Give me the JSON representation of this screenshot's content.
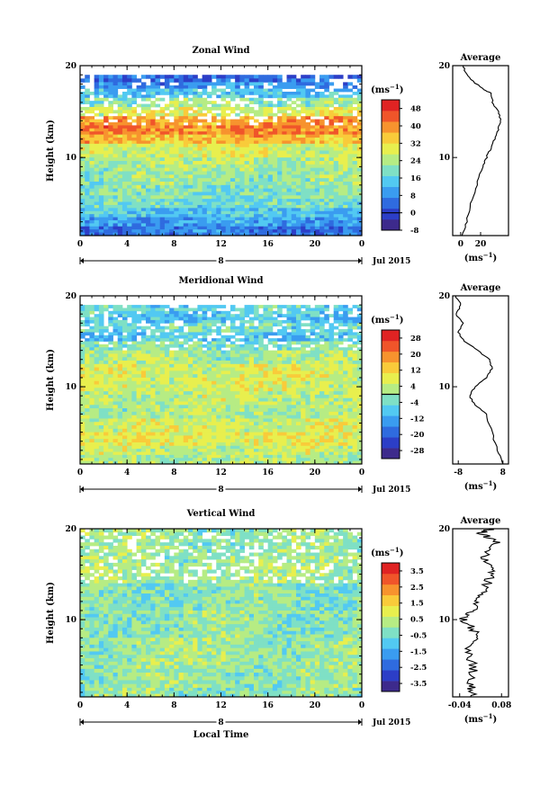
{
  "chart_data": [
    {
      "type": "heatmap",
      "title": "Zonal Wind",
      "ylabel": "Height (km)",
      "x_ticks": [
        "0",
        "4",
        "8",
        "12",
        "16",
        "20",
        "0"
      ],
      "y_ticks": [
        "10",
        "20"
      ],
      "xlim": [
        0,
        24
      ],
      "ylim": [
        1.5,
        20
      ],
      "date_marker": "8",
      "date_label": "Jul 2015",
      "colorbar": {
        "unit": "(ms",
        "unit_sup": "−1",
        "unit_close": ")",
        "labels": [
          "48",
          "40",
          "32",
          "24",
          "16",
          "8",
          "0",
          "-8"
        ],
        "range": [
          -8,
          52
        ],
        "zero_line": 0,
        "colors": [
          "#3d2a8c",
          "#2c3ec7",
          "#2f6bdf",
          "#3a9cf0",
          "#52c9f2",
          "#7fe0c5",
          "#b6ec84",
          "#e8ef4e",
          "#f9cb3a",
          "#f7932e",
          "#f0552a",
          "#e02323"
        ]
      },
      "rows": [
        {
          "y_max": 20.0,
          "base": null
        },
        {
          "y_max": 19.0,
          "base": 4
        },
        {
          "y_max": 18.2,
          "base": 8
        },
        {
          "y_max": 17.5,
          "base": 14
        },
        {
          "y_max": 16.5,
          "base": 22
        },
        {
          "y_max": 15.5,
          "base": 28
        },
        {
          "y_max": 14.5,
          "base": 38
        },
        {
          "y_max": 13.5,
          "base": 40
        },
        {
          "y_max": 12.5,
          "base": 36
        },
        {
          "y_max": 11.5,
          "base": 28
        },
        {
          "y_max": 10.0,
          "base": 24
        },
        {
          "y_max": 8.5,
          "base": 22
        },
        {
          "y_max": 7.0,
          "base": 20
        },
        {
          "y_max": 5.5,
          "base": 18
        },
        {
          "y_max": 4.5,
          "base": 14
        },
        {
          "y_max": 3.5,
          "base": 10
        },
        {
          "y_max": 2.5,
          "base": 6
        }
      ],
      "average": {
        "title": "Average",
        "x_ticks": [
          "0",
          "20"
        ],
        "xlim": [
          -8,
          48
        ],
        "xlabel": "(ms",
        "xlabel_sup": "−1",
        "xlabel_close": ")",
        "profile": [
          [
            2,
            1.5
          ],
          [
            6,
            3
          ],
          [
            10,
            5
          ],
          [
            16,
            7
          ],
          [
            22,
            9
          ],
          [
            26,
            10
          ],
          [
            30,
            11
          ],
          [
            34,
            12
          ],
          [
            38,
            13
          ],
          [
            40,
            14
          ],
          [
            38,
            15
          ],
          [
            32,
            16
          ],
          [
            30,
            17
          ],
          [
            22,
            17.5
          ],
          [
            10,
            18.5
          ],
          [
            4,
            19.5
          ],
          [
            2,
            20
          ]
        ]
      }
    },
    {
      "type": "heatmap",
      "title": "Meridional Wind",
      "ylabel": "Height (km)",
      "x_ticks": [
        "0",
        "4",
        "8",
        "12",
        "16",
        "20",
        "0"
      ],
      "y_ticks": [
        "10",
        "20"
      ],
      "xlim": [
        0,
        24
      ],
      "ylim": [
        1.5,
        20
      ],
      "date_marker": "8",
      "date_label": "Jul 2015",
      "colorbar": {
        "unit": "(ms",
        "unit_sup": "−1",
        "unit_close": ")",
        "labels": [
          "28",
          "20",
          "12",
          "4",
          "-4",
          "-12",
          "-20",
          "-28"
        ],
        "range": [
          -32,
          32
        ],
        "zero_line": 0,
        "colors": [
          "#3d2a8c",
          "#2c3ec7",
          "#2f6bdf",
          "#3a9cf0",
          "#52c9f2",
          "#7fe0c5",
          "#b6ec84",
          "#e8ef4e",
          "#f9cb3a",
          "#f7932e",
          "#f0552a",
          "#e02323"
        ]
      },
      "rows": [
        {
          "y_max": 20.0,
          "base": null
        },
        {
          "y_max": 19.0,
          "base": -6
        },
        {
          "y_max": 18.0,
          "base": -8
        },
        {
          "y_max": 17.0,
          "base": -4
        },
        {
          "y_max": 16.0,
          "base": -8
        },
        {
          "y_max": 15.0,
          "base": -2
        },
        {
          "y_max": 14.0,
          "base": 2
        },
        {
          "y_max": 12.5,
          "base": 6
        },
        {
          "y_max": 11.0,
          "base": 6
        },
        {
          "y_max": 9.5,
          "base": 4
        },
        {
          "y_max": 8.0,
          "base": 2
        },
        {
          "y_max": 6.5,
          "base": 6
        },
        {
          "y_max": 5.0,
          "base": 8
        },
        {
          "y_max": 3.5,
          "base": 4
        },
        {
          "y_max": 2.5,
          "base": 2
        }
      ],
      "average": {
        "title": "Average",
        "x_ticks": [
          "-8",
          "8"
        ],
        "xlim": [
          -10,
          10
        ],
        "xlabel": "(ms",
        "xlabel_sup": "−1",
        "xlabel_close": ")",
        "profile": [
          [
            8,
            1.5
          ],
          [
            6,
            3
          ],
          [
            4,
            5
          ],
          [
            2,
            7
          ],
          [
            -2,
            8
          ],
          [
            -4,
            9
          ],
          [
            -2,
            10
          ],
          [
            2,
            11
          ],
          [
            4,
            12
          ],
          [
            3,
            13
          ],
          [
            -1,
            14
          ],
          [
            -6,
            15
          ],
          [
            -8,
            16
          ],
          [
            -6,
            17
          ],
          [
            -9,
            18
          ],
          [
            -7,
            19
          ],
          [
            -9,
            20
          ]
        ]
      }
    },
    {
      "type": "heatmap",
      "title": "Vertical Wind",
      "ylabel": "Height (km)",
      "xlabel": "Local Time",
      "x_ticks": [
        "0",
        "4",
        "8",
        "12",
        "16",
        "20",
        "0"
      ],
      "y_ticks": [
        "10",
        "20"
      ],
      "xlim": [
        0,
        24
      ],
      "ylim": [
        1.5,
        20
      ],
      "date_marker": "8",
      "date_label": "Jul 2015",
      "colorbar": {
        "unit": "(ms",
        "unit_sup": "−1",
        "unit_close": ")",
        "labels": [
          "3.5",
          "2.5",
          "1.5",
          "0.5",
          "-0.5",
          "-1.5",
          "-2.5",
          "-3.5"
        ],
        "range": [
          -4,
          4
        ],
        "zero_line": null,
        "colors": [
          "#3d2a8c",
          "#2c3ec7",
          "#2f6bdf",
          "#3a9cf0",
          "#52c9f2",
          "#7fe0c5",
          "#b6ec84",
          "#e8ef4e",
          "#f9cb3a",
          "#f7932e",
          "#f0552a",
          "#e02323"
        ]
      },
      "rows": [
        {
          "y_max": 20.0,
          "base": 0.0
        },
        {
          "y_max": 17.0,
          "base": 0.2
        },
        {
          "y_max": 14.0,
          "base": -0.2
        },
        {
          "y_max": 11.0,
          "base": -0.1
        },
        {
          "y_max": 8.0,
          "base": 0.1
        },
        {
          "y_max": 5.0,
          "base": 0.0
        },
        {
          "y_max": 2.5,
          "base": -0.1
        }
      ],
      "average": {
        "title": "Average",
        "x_ticks": [
          "-0.04",
          "0.08"
        ],
        "xlim": [
          -0.06,
          0.1
        ],
        "xlabel": "(ms",
        "xlabel_sup": "−1",
        "xlabel_close": ")",
        "profile": [
          [
            0.0,
            1.5
          ],
          [
            -0.01,
            3
          ],
          [
            0.0,
            5
          ],
          [
            -0.02,
            7
          ],
          [
            0.01,
            8.5
          ],
          [
            -0.03,
            10
          ],
          [
            0.0,
            11
          ],
          [
            0.02,
            12.5
          ],
          [
            0.04,
            14
          ],
          [
            0.06,
            15.5
          ],
          [
            0.03,
            17
          ],
          [
            0.07,
            18.5
          ],
          [
            0.02,
            19.5
          ],
          [
            0.05,
            20
          ]
        ]
      }
    }
  ]
}
